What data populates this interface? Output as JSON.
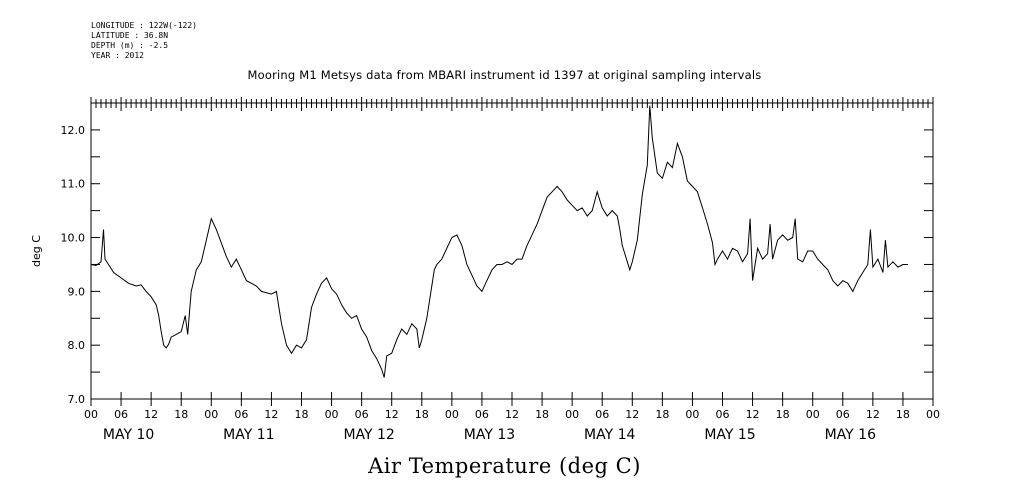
{
  "metadata": {
    "lines": [
      "LONGITUDE : 122W(-122)",
      "LATITUDE : 36.8N",
      "DEPTH (m) : -2.5",
      "YEAR : 2012"
    ]
  },
  "chart_data": {
    "type": "line",
    "title": "Mooring M1 Metsys data from MBARI instrument id 1397 at original sampling intervals",
    "xlabel": "Air Temperature (deg C)",
    "ylabel": "deg C",
    "ylim": [
      7.0,
      12.5
    ],
    "yticks": [
      "7.0",
      "8.0",
      "9.0",
      "10.0",
      "11.0",
      "12.0"
    ],
    "xlim_hours": [
      0,
      168
    ],
    "x_hour_ticks": [
      "00",
      "06",
      "12",
      "18",
      "00",
      "06",
      "12",
      "18",
      "00",
      "06",
      "12",
      "18",
      "00",
      "06",
      "12",
      "18",
      "00",
      "06",
      "12",
      "18",
      "00",
      "06",
      "12",
      "18",
      "00",
      "06",
      "12",
      "18",
      "00"
    ],
    "day_labels": [
      "MAY 10",
      "MAY 11",
      "MAY 12",
      "MAY 13",
      "MAY 14",
      "MAY 15",
      "MAY 16"
    ],
    "grid": false,
    "series": [
      {
        "color": "#000000",
        "points": [
          [
            0,
            9.5
          ],
          [
            1,
            9.48
          ],
          [
            2,
            9.55
          ],
          [
            2.5,
            10.15
          ],
          [
            2.8,
            9.6
          ],
          [
            3.5,
            9.5
          ],
          [
            4.5,
            9.35
          ],
          [
            6,
            9.25
          ],
          [
            7.5,
            9.15
          ],
          [
            9,
            9.1
          ],
          [
            10,
            9.12
          ],
          [
            11,
            9.0
          ],
          [
            12,
            8.9
          ],
          [
            13,
            8.75
          ],
          [
            13.5,
            8.55
          ],
          [
            14,
            8.25
          ],
          [
            14.5,
            8.0
          ],
          [
            15,
            7.95
          ],
          [
            15.5,
            8.02
          ],
          [
            16,
            8.15
          ],
          [
            17,
            8.2
          ],
          [
            18,
            8.25
          ],
          [
            18.8,
            8.55
          ],
          [
            19.3,
            8.2
          ],
          [
            20,
            9.0
          ],
          [
            21,
            9.4
          ],
          [
            22,
            9.55
          ],
          [
            23,
            9.95
          ],
          [
            24,
            10.35
          ],
          [
            25,
            10.15
          ],
          [
            26,
            9.9
          ],
          [
            27,
            9.65
          ],
          [
            28,
            9.45
          ],
          [
            29,
            9.6
          ],
          [
            30,
            9.4
          ],
          [
            31,
            9.2
          ],
          [
            32,
            9.15
          ],
          [
            33,
            9.1
          ],
          [
            34,
            9.0
          ],
          [
            36,
            8.95
          ],
          [
            37,
            9.0
          ],
          [
            37.5,
            8.7
          ],
          [
            38,
            8.4
          ],
          [
            39,
            8.0
          ],
          [
            40,
            7.85
          ],
          [
            41,
            8.0
          ],
          [
            42,
            7.95
          ],
          [
            43,
            8.1
          ],
          [
            44,
            8.7
          ],
          [
            45,
            8.95
          ],
          [
            46,
            9.15
          ],
          [
            47,
            9.25
          ],
          [
            48,
            9.05
          ],
          [
            49,
            8.95
          ],
          [
            50,
            8.75
          ],
          [
            51,
            8.6
          ],
          [
            52,
            8.5
          ],
          [
            53,
            8.55
          ],
          [
            54,
            8.3
          ],
          [
            55,
            8.15
          ],
          [
            56,
            7.9
          ],
          [
            57,
            7.75
          ],
          [
            58,
            7.55
          ],
          [
            58.5,
            7.4
          ],
          [
            59,
            7.8
          ],
          [
            60,
            7.85
          ],
          [
            61,
            8.1
          ],
          [
            62,
            8.3
          ],
          [
            63,
            8.2
          ],
          [
            64,
            8.4
          ],
          [
            65,
            8.3
          ],
          [
            65.5,
            7.95
          ],
          [
            66,
            8.1
          ],
          [
            67,
            8.5
          ],
          [
            68,
            9.1
          ],
          [
            68.5,
            9.4
          ],
          [
            69,
            9.5
          ],
          [
            70,
            9.6
          ],
          [
            71,
            9.8
          ],
          [
            72,
            10.0
          ],
          [
            73,
            10.05
          ],
          [
            74,
            9.85
          ],
          [
            75,
            9.5
          ],
          [
            76,
            9.3
          ],
          [
            77,
            9.1
          ],
          [
            78,
            9.0
          ],
          [
            79,
            9.2
          ],
          [
            80,
            9.4
          ],
          [
            81,
            9.5
          ],
          [
            82,
            9.5
          ],
          [
            83,
            9.55
          ],
          [
            84,
            9.5
          ],
          [
            85,
            9.6
          ],
          [
            86,
            9.6
          ],
          [
            87,
            9.85
          ],
          [
            88,
            10.05
          ],
          [
            89,
            10.25
          ],
          [
            90,
            10.5
          ],
          [
            91,
            10.75
          ],
          [
            92,
            10.85
          ],
          [
            93,
            10.95
          ],
          [
            94,
            10.85
          ],
          [
            95,
            10.7
          ],
          [
            96,
            10.6
          ],
          [
            97,
            10.5
          ],
          [
            98,
            10.55
          ],
          [
            99,
            10.4
          ],
          [
            100,
            10.5
          ],
          [
            101,
            10.85
          ],
          [
            102,
            10.55
          ],
          [
            103,
            10.4
          ],
          [
            104,
            10.5
          ],
          [
            105,
            10.4
          ],
          [
            105.5,
            10.15
          ],
          [
            106,
            9.85
          ],
          [
            107,
            9.55
          ],
          [
            107.5,
            9.4
          ],
          [
            108,
            9.55
          ],
          [
            109,
            9.95
          ],
          [
            110,
            10.8
          ],
          [
            111,
            11.35
          ],
          [
            111.5,
            12.45
          ],
          [
            112,
            11.85
          ],
          [
            113,
            11.2
          ],
          [
            114,
            11.1
          ],
          [
            115,
            11.4
          ],
          [
            116,
            11.3
          ],
          [
            117,
            11.75
          ],
          [
            118,
            11.5
          ],
          [
            119,
            11.05
          ],
          [
            120,
            10.95
          ],
          [
            121,
            10.85
          ],
          [
            122,
            10.55
          ],
          [
            123,
            10.25
          ],
          [
            124,
            9.9
          ],
          [
            124.5,
            9.5
          ],
          [
            125,
            9.6
          ],
          [
            126,
            9.75
          ],
          [
            127,
            9.6
          ],
          [
            128,
            9.8
          ],
          [
            129,
            9.75
          ],
          [
            130,
            9.55
          ],
          [
            131,
            9.7
          ],
          [
            131.5,
            10.35
          ],
          [
            132,
            9.2
          ],
          [
            133,
            9.8
          ],
          [
            134,
            9.6
          ],
          [
            135,
            9.7
          ],
          [
            135.5,
            10.25
          ],
          [
            136,
            9.6
          ],
          [
            137,
            9.95
          ],
          [
            138,
            10.05
          ],
          [
            139,
            9.95
          ],
          [
            140,
            10.0
          ],
          [
            140.5,
            10.35
          ],
          [
            141,
            9.6
          ],
          [
            142,
            9.55
          ],
          [
            143,
            9.75
          ],
          [
            144,
            9.75
          ],
          [
            145,
            9.6
          ],
          [
            146,
            9.5
          ],
          [
            147,
            9.4
          ],
          [
            148,
            9.2
          ],
          [
            149,
            9.1
          ],
          [
            150,
            9.2
          ],
          [
            151,
            9.15
          ],
          [
            152,
            9.0
          ],
          [
            153,
            9.2
          ],
          [
            154,
            9.35
          ],
          [
            155,
            9.5
          ],
          [
            155.5,
            10.15
          ],
          [
            156,
            9.45
          ],
          [
            157,
            9.6
          ],
          [
            158,
            9.35
          ],
          [
            158.5,
            9.95
          ],
          [
            159,
            9.45
          ],
          [
            160,
            9.55
          ],
          [
            161,
            9.45
          ],
          [
            162,
            9.5
          ],
          [
            163,
            9.5
          ]
        ]
      }
    ]
  }
}
